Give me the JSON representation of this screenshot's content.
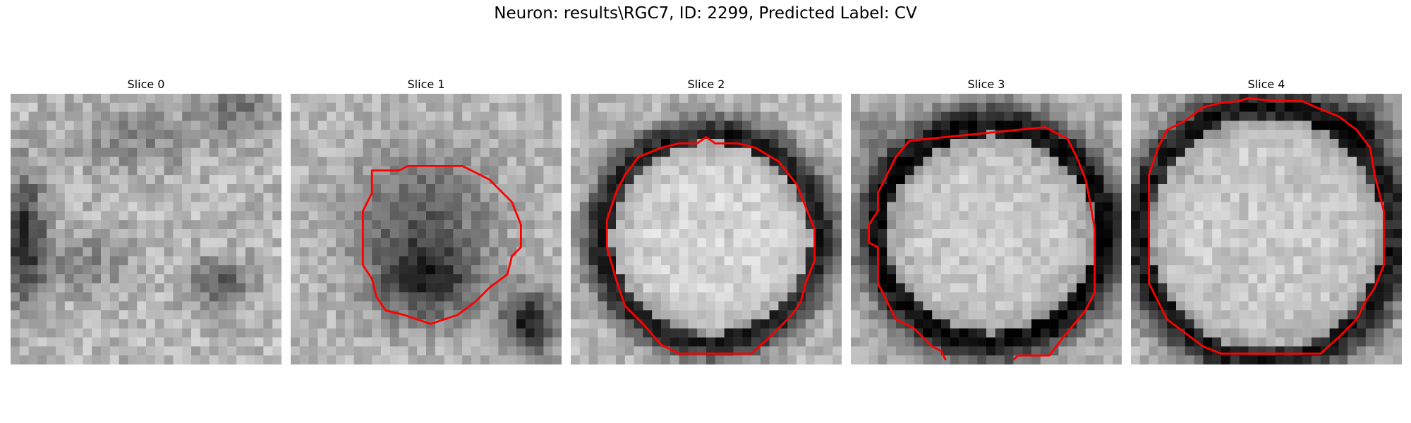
{
  "figure": {
    "title": "Neuron: results\\RGC7, ID: 2299, Predicted Label: CV"
  },
  "panels": [
    {
      "title": "Slice 0",
      "contour": false
    },
    {
      "title": "Slice 1",
      "contour": true
    },
    {
      "title": "Slice 2",
      "contour": true
    },
    {
      "title": "Slice 3",
      "contour": true
    },
    {
      "title": "Slice 4",
      "contour": true
    }
  ],
  "colors": {
    "contour": "#ff0000"
  }
}
